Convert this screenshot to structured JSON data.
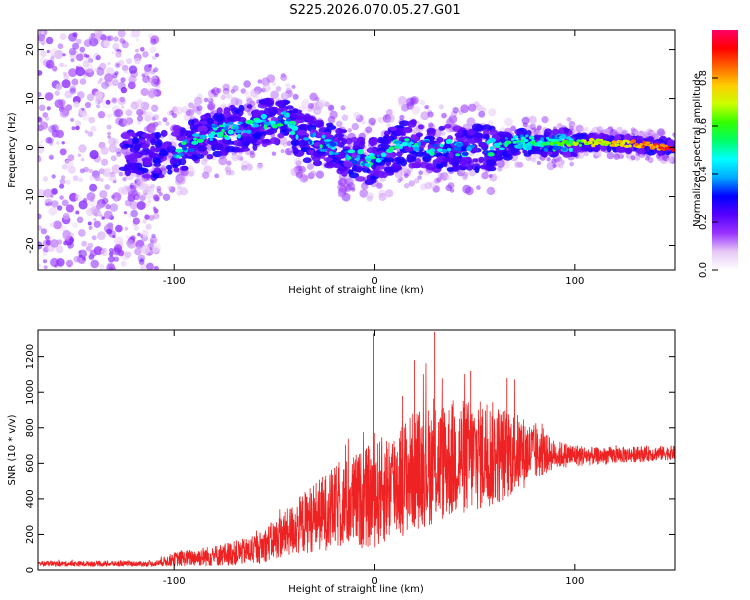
{
  "page_title": "S225.2026.070.05.27.G01",
  "chart_data": [
    {
      "type": "heatmap",
      "title": "S225.2026.070.05.27.G01",
      "xlabel": "Height of straight line (km)",
      "ylabel": "Frequency (Hz)",
      "xlim": [
        -168,
        150
      ],
      "ylim": [
        -25,
        24
      ],
      "xticks": [
        -100,
        0,
        100
      ],
      "yticks": [
        -20,
        -10,
        0,
        10,
        20
      ],
      "colorbar": {
        "label": "Normalized spectral amplitude",
        "range": [
          0.0,
          1.0
        ],
        "ticks": [
          "0.0",
          "0.2",
          "0.4",
          "0.6",
          "0.8"
        ],
        "colors": [
          "#ffffff",
          "#e6c8f5",
          "#9933ff",
          "#5500ff",
          "#0000ff",
          "#00aaff",
          "#00ffff",
          "#00ff66",
          "#33ff00",
          "#ccff00",
          "#ffcc00",
          "#ff6600",
          "#ff0000",
          "#ff0066"
        ]
      },
      "ridge": [
        {
          "x": -168,
          "y": 0
        },
        {
          "x": -130,
          "y": 0
        },
        {
          "x": -110,
          "y": -2
        },
        {
          "x": -95,
          "y": 0
        },
        {
          "x": -80,
          "y": 3
        },
        {
          "x": -65,
          "y": 4
        },
        {
          "x": -45,
          "y": 6
        },
        {
          "x": -35,
          "y": 2
        },
        {
          "x": -20,
          "y": 0
        },
        {
          "x": -10,
          "y": -2
        },
        {
          "x": 0,
          "y": -3
        },
        {
          "x": 15,
          "y": 1
        },
        {
          "x": 30,
          "y": 0
        },
        {
          "x": 45,
          "y": 0
        },
        {
          "x": 60,
          "y": 0
        },
        {
          "x": 75,
          "y": 1
        },
        {
          "x": 90,
          "y": 1
        },
        {
          "x": 100,
          "y": 1
        },
        {
          "x": 120,
          "y": 1
        },
        {
          "x": 150,
          "y": 0
        }
      ]
    },
    {
      "type": "line",
      "xlabel": "Height of straight line (km)",
      "ylabel": "SNR (10 * v/v)",
      "xlim": [
        -168,
        150
      ],
      "ylim": [
        0,
        1350
      ],
      "xticks": [
        -100,
        0,
        100
      ],
      "yticks": [
        0,
        200,
        400,
        600,
        800,
        1000,
        1200
      ],
      "color": "#ee2222",
      "series": [
        {
          "name": "SNR",
          "envelope": [
            {
              "x": -168,
              "mean": 35,
              "amp": 15
            },
            {
              "x": -110,
              "mean": 35,
              "amp": 15
            },
            {
              "x": -100,
              "mean": 60,
              "amp": 40
            },
            {
              "x": -80,
              "mean": 80,
              "amp": 60
            },
            {
              "x": -60,
              "mean": 110,
              "amp": 80
            },
            {
              "x": -45,
              "mean": 200,
              "amp": 130
            },
            {
              "x": -30,
              "mean": 300,
              "amp": 200
            },
            {
              "x": -15,
              "mean": 370,
              "amp": 250
            },
            {
              "x": 0,
              "mean": 420,
              "amp": 300
            },
            {
              "x": 20,
              "mean": 560,
              "amp": 340
            },
            {
              "x": 40,
              "mean": 630,
              "amp": 340
            },
            {
              "x": 60,
              "mean": 650,
              "amp": 300
            },
            {
              "x": 75,
              "mean": 660,
              "amp": 200
            },
            {
              "x": 90,
              "mean": 650,
              "amp": 80
            },
            {
              "x": 110,
              "mean": 640,
              "amp": 50
            },
            {
              "x": 150,
              "mean": 660,
              "amp": 40
            }
          ],
          "spikes": [
            {
              "x": -0.5,
              "y": 1330
            },
            {
              "x": 30,
              "y": 1340
            },
            {
              "x": 20,
              "y": 1180
            },
            {
              "x": 48,
              "y": 1120
            },
            {
              "x": 66,
              "y": 1080
            }
          ]
        }
      ]
    }
  ]
}
